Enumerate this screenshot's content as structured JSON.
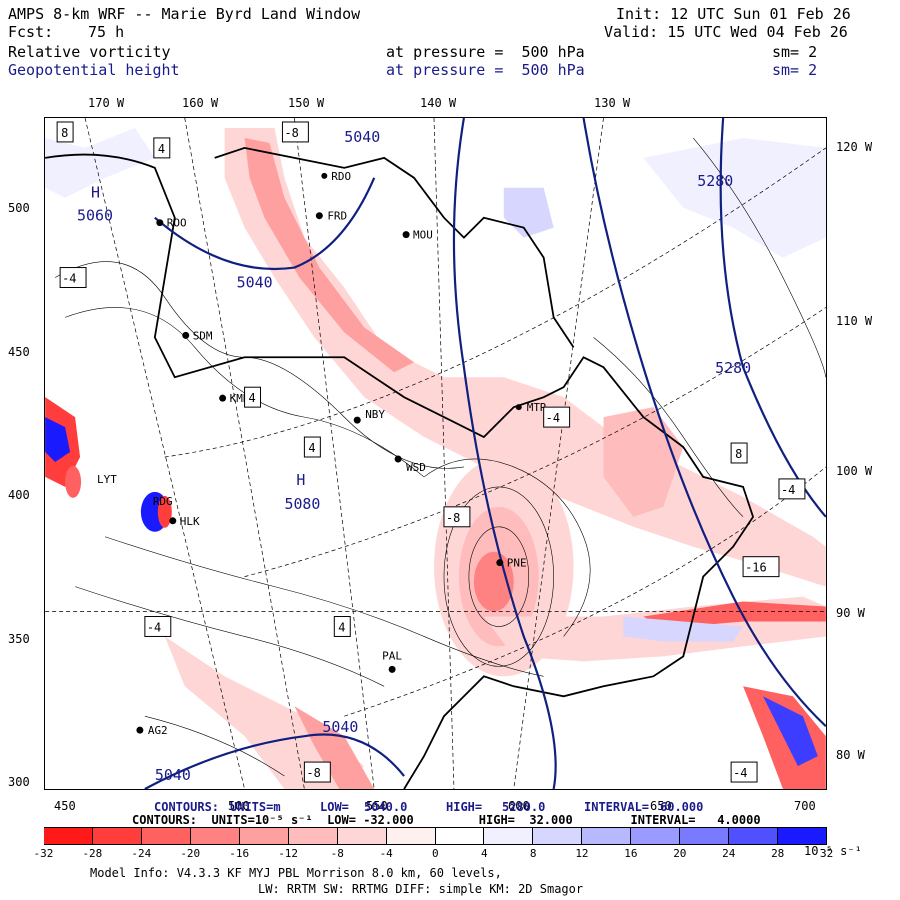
{
  "header": {
    "title_left": "AMPS 8-km WRF -- Marie Byrd Land Window",
    "fcst_label": "Fcst:",
    "fcst_value": "75 h",
    "init": "Init: 12 UTC Sun 01 Feb 26",
    "valid": "Valid: 15 UTC Wed 04 Feb 26",
    "field1_name": "Relative vorticity",
    "field1_level": "at pressure =  500 hPa",
    "field1_sm": "sm= 2",
    "field2_name": "Geopotential height",
    "field2_level": "at pressure =  500 hPa",
    "field2_sm": "sm= 2"
  },
  "axes": {
    "lon_top": [
      "170 W",
      "160 W",
      "150 W",
      "140 W",
      "130 W"
    ],
    "lat_right": [
      "120 W",
      "110 W",
      "100 W",
      "90 W",
      "80 W"
    ],
    "y_ticks": [
      "500",
      "450",
      "400",
      "350",
      "300"
    ],
    "x_ticks": [
      "450",
      "500",
      "550",
      "600",
      "650",
      "700"
    ]
  },
  "contours": {
    "line1_a": "CONTOURS:",
    "line1_b": "UNITS=m",
    "line1_c": "LOW=",
    "line1_low": "5040.0",
    "line1_d": "HIGH=",
    "line1_high": "5280.0",
    "line1_e": "INTERVAL=",
    "line1_int": "60.000",
    "line2": "CONTOURS:  UNITS=10⁻⁵ s⁻¹  LOW= -32.000         HIGH=  32.000        INTERVAL=   4.0000"
  },
  "colorbar": {
    "labels": [
      "-32",
      "-28",
      "-24",
      "-20",
      "-16",
      "-12",
      "-8",
      "-4",
      "0",
      "4",
      "8",
      "12",
      "16",
      "20",
      "24",
      "28",
      "32"
    ],
    "unit": "10⁻⁵ s⁻¹",
    "colors": [
      "#ff1a1a",
      "#ff3d3d",
      "#ff6060",
      "#ff8282",
      "#ffa0a0",
      "#ffbcbc",
      "#ffd6d6",
      "#fff0f0",
      "#ffffff",
      "#ffffff",
      "#f0f0ff",
      "#d6d6ff",
      "#b8b8ff",
      "#9a9aff",
      "#7a7aff",
      "#5050ff",
      "#1a1aff"
    ]
  },
  "stations": [
    "ROO",
    "FRD",
    "MOU",
    "SDM",
    "KMB",
    "NBY",
    "WSD",
    "LYT",
    "RDG",
    "HLK",
    "PNE",
    "PAL",
    "AG2",
    "RDO",
    "MTR"
  ],
  "map_labels": {
    "h1": "H",
    "h1_val": "5060",
    "h2": "H",
    "h2_val": "5080",
    "h3_val": "5280",
    "h4_val": "5280",
    "c5040a": "5040",
    "c5040b": "5040",
    "c5040c": "5040",
    "c5040d": "5040"
  },
  "footer": {
    "line1": "Model Info: V4.3.3   KF      MYJ PBL  Morrison              8.0 km,  60 levels,",
    "line2": "LW: RRTM SW: RRTMG   DIFF: simple KM: 2D Smagor"
  }
}
